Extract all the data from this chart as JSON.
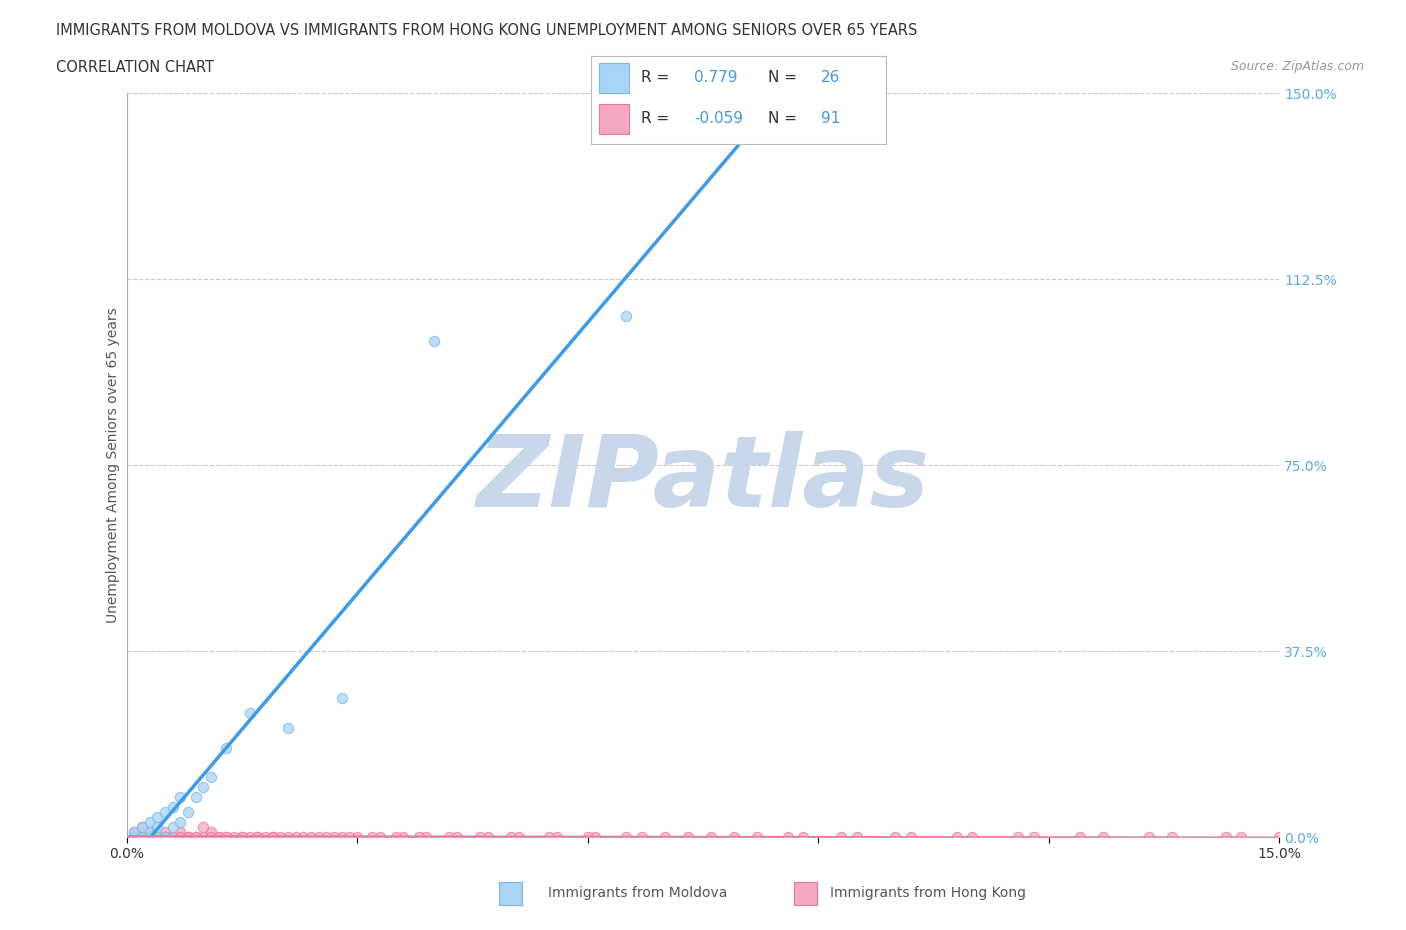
{
  "title_line1": "IMMIGRANTS FROM MOLDOVA VS IMMIGRANTS FROM HONG KONG UNEMPLOYMENT AMONG SENIORS OVER 65 YEARS",
  "title_line2": "CORRELATION CHART",
  "source_text": "Source: ZipAtlas.com",
  "ylabel": "Unemployment Among Seniors over 65 years",
  "xlim": [
    0.0,
    0.15
  ],
  "ylim": [
    0.0,
    1.5
  ],
  "xticks": [
    0.0,
    0.03,
    0.06,
    0.09,
    0.12,
    0.15
  ],
  "yticks": [
    0.0,
    0.375,
    0.75,
    1.125,
    1.5
  ],
  "right_ytick_labels": [
    "0.0%",
    "37.5%",
    "75.0%",
    "112.5%",
    "150.0%"
  ],
  "bottom_xtick_labels_show": [
    "0.0%",
    "15.0%"
  ],
  "moldova_color": "#A8D4F5",
  "moldova_edge": "#7AB8E8",
  "hongkong_color": "#F5A8C0",
  "hongkong_edge": "#E87AA0",
  "regression_moldova_color": "#3D9BE9",
  "regression_hongkong_color": "#E87AA0",
  "moldova_R": 0.779,
  "moldova_N": 26,
  "hongkong_R": -0.059,
  "hongkong_N": 91,
  "watermark": "ZIPatlas",
  "watermark_color": "#C8D8EA",
  "grid_color": "#CCCCCC",
  "background_color": "#FFFFFF",
  "legend_box_color": "#DDDDDD",
  "moldova_scatter_x": [
    0.001,
    0.001,
    0.002,
    0.002,
    0.003,
    0.003,
    0.003,
    0.004,
    0.004,
    0.004,
    0.005,
    0.005,
    0.006,
    0.006,
    0.007,
    0.007,
    0.008,
    0.009,
    0.01,
    0.011,
    0.013,
    0.016,
    0.021,
    0.028,
    0.04,
    0.065
  ],
  "moldova_scatter_y": [
    0.0,
    0.01,
    0.0,
    0.02,
    0.0,
    0.01,
    0.03,
    0.0,
    0.02,
    0.04,
    0.0,
    0.05,
    0.02,
    0.06,
    0.03,
    0.08,
    0.05,
    0.08,
    0.1,
    0.12,
    0.18,
    0.25,
    0.22,
    0.28,
    1.0,
    1.05
  ],
  "hongkong_scatter_x": [
    0.001,
    0.001,
    0.002,
    0.002,
    0.003,
    0.003,
    0.004,
    0.004,
    0.005,
    0.005,
    0.005,
    0.006,
    0.007,
    0.007,
    0.008,
    0.008,
    0.009,
    0.01,
    0.011,
    0.011,
    0.012,
    0.013,
    0.014,
    0.015,
    0.016,
    0.017,
    0.018,
    0.019,
    0.02,
    0.022,
    0.024,
    0.026,
    0.028,
    0.03,
    0.033,
    0.036,
    0.039,
    0.043,
    0.047,
    0.051,
    0.056,
    0.061,
    0.067,
    0.073,
    0.079,
    0.086,
    0.093,
    0.1,
    0.108,
    0.116,
    0.124,
    0.133,
    0.143,
    0.151,
    0.002,
    0.003,
    0.004,
    0.005,
    0.006,
    0.007,
    0.008,
    0.009,
    0.01,
    0.011,
    0.012,
    0.013,
    0.015,
    0.017,
    0.019,
    0.021,
    0.023,
    0.025,
    0.027,
    0.029,
    0.032,
    0.035,
    0.038,
    0.042,
    0.046,
    0.05,
    0.055,
    0.06,
    0.065,
    0.07,
    0.076,
    0.082,
    0.088,
    0.095,
    0.102,
    0.11,
    0.118,
    0.127,
    0.136,
    0.145,
    0.15
  ],
  "hongkong_scatter_y": [
    0.0,
    0.01,
    0.0,
    0.02,
    0.0,
    0.01,
    0.0,
    0.0,
    0.0,
    0.01,
    0.0,
    0.0,
    0.0,
    0.01,
    0.0,
    0.0,
    0.0,
    0.0,
    0.0,
    0.01,
    0.0,
    0.0,
    0.0,
    0.0,
    0.0,
    0.0,
    0.0,
    0.0,
    0.0,
    0.0,
    0.0,
    0.0,
    0.0,
    0.0,
    0.0,
    0.0,
    0.0,
    0.0,
    0.0,
    0.0,
    0.0,
    0.0,
    0.0,
    0.0,
    0.0,
    0.0,
    0.0,
    0.0,
    0.0,
    0.0,
    0.0,
    0.0,
    0.0,
    0.0,
    0.0,
    0.0,
    0.0,
    0.0,
    0.0,
    0.0,
    0.0,
    0.0,
    0.02,
    0.0,
    0.0,
    0.0,
    0.0,
    0.0,
    0.0,
    0.0,
    0.0,
    0.0,
    0.0,
    0.0,
    0.0,
    0.0,
    0.0,
    0.0,
    0.0,
    0.0,
    0.0,
    0.0,
    0.0,
    0.0,
    0.0,
    0.0,
    0.0,
    0.0,
    0.0,
    0.0,
    0.0,
    0.0,
    0.0,
    0.0,
    0.0
  ]
}
